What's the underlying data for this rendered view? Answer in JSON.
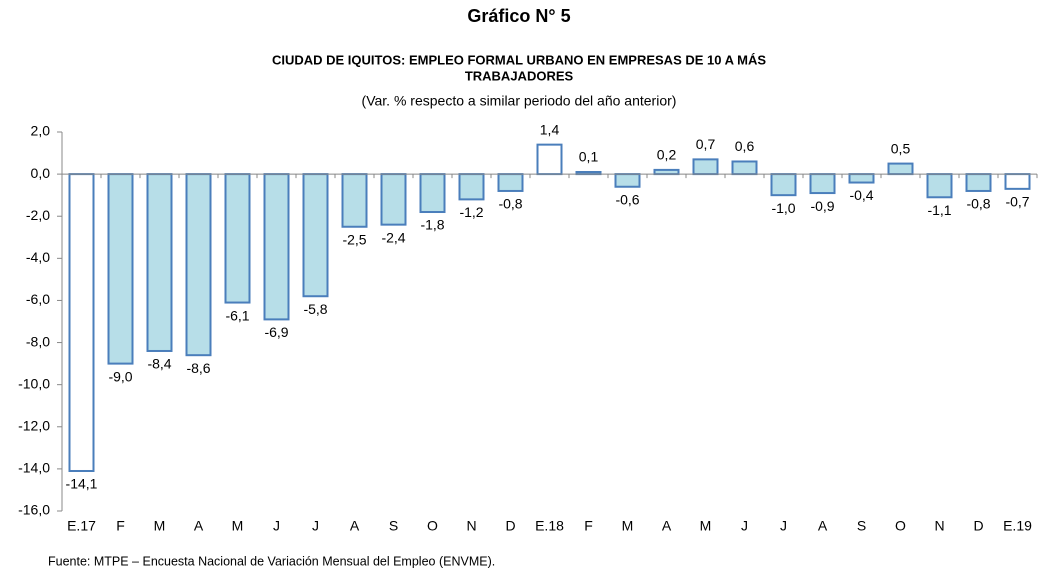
{
  "chart_data": {
    "type": "bar",
    "title": "Gráfico N° 5",
    "subtitle": [
      "CIUDAD DE IQUITOS: EMPLEO FORMAL URBANO EN EMPRESAS DE 10 A MÁS",
      "TRABAJADORES"
    ],
    "unit_note": "(Var. % respecto a similar periodo del año anterior)",
    "source": "Fuente: MTPE – Encuesta Nacional de Variación Mensual del Empleo (ENVME).",
    "categories": [
      "E.17",
      "F",
      "M",
      "A",
      "M",
      "J",
      "J",
      "A",
      "S",
      "O",
      "N",
      "D",
      "E.18",
      "F",
      "M",
      "A",
      "M",
      "J",
      "J",
      "A",
      "S",
      "O",
      "N",
      "D",
      "E.19"
    ],
    "values": [
      -14.1,
      -9.0,
      -8.4,
      -8.6,
      -6.1,
      -6.9,
      -5.8,
      -2.5,
      -2.4,
      -1.8,
      -1.2,
      -0.8,
      1.4,
      0.1,
      -0.6,
      0.2,
      0.7,
      0.6,
      -1.0,
      -0.9,
      -0.4,
      0.5,
      -1.1,
      -0.8,
      -0.7
    ],
    "value_labels": [
      "-14,1",
      "-9,0",
      "-8,4",
      "-8,6",
      "-6,1",
      "-6,9",
      "-5,8",
      "-2,5",
      "-2,4",
      "-1,8",
      "-1,2",
      "-0,8",
      "1,4",
      "0,1",
      "-0,6",
      "0,2",
      "0,7",
      "0,6",
      "-1,0",
      "-0,9",
      "-0,4",
      "0,5",
      "-1,1",
      "-0,8",
      "-0,7"
    ],
    "colors": [
      "#ffffff",
      "#b7dee8",
      "#b7dee8",
      "#b7dee8",
      "#b7dee8",
      "#b7dee8",
      "#b7dee8",
      "#b7dee8",
      "#b7dee8",
      "#b7dee8",
      "#b7dee8",
      "#b7dee8",
      "#ffffff",
      "#b7dee8",
      "#b7dee8",
      "#b7dee8",
      "#b7dee8",
      "#b7dee8",
      "#b7dee8",
      "#b7dee8",
      "#b7dee8",
      "#b7dee8",
      "#b7dee8",
      "#b7dee8",
      "#ffffff"
    ],
    "edge_color": "#4a7ebb",
    "ylim": [
      -16,
      2
    ],
    "yticks": [
      {
        "value": -16,
        "label": "-16,0"
      },
      {
        "value": -14,
        "label": "-14,0"
      },
      {
        "value": -12,
        "label": "-12,0"
      },
      {
        "value": -10,
        "label": "-10,0"
      },
      {
        "value": -8,
        "label": "-8,0"
      },
      {
        "value": -6,
        "label": "-6,0"
      },
      {
        "value": -4,
        "label": "-4,0"
      },
      {
        "value": -2,
        "label": "-2,0"
      },
      {
        "value": 0,
        "label": "0,0"
      },
      {
        "value": 2,
        "label": "2,0"
      }
    ],
    "grid": false
  }
}
